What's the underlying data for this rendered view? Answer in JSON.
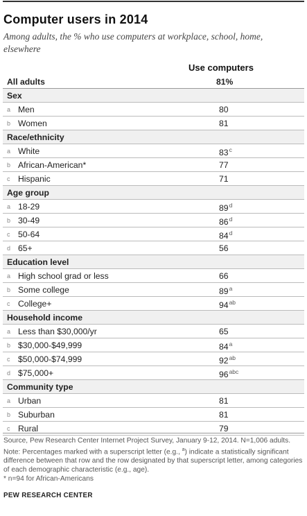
{
  "title": "Computer users in 2014",
  "subtitle": "Among adults, the % who use computers at workplace, school, home, elsewhere",
  "column_header": "Use computers",
  "chart_data": {
    "type": "table",
    "columns": [
      "",
      "Use computers"
    ],
    "rows": [
      {
        "kind": "all",
        "label": "All adults",
        "value": "81%"
      },
      {
        "kind": "section",
        "label": "Sex"
      },
      {
        "kind": "row",
        "letter": "a",
        "label": "Men",
        "value": "80",
        "sup": ""
      },
      {
        "kind": "row",
        "letter": "b",
        "label": "Women",
        "value": "81",
        "sup": ""
      },
      {
        "kind": "section",
        "label": "Race/ethnicity"
      },
      {
        "kind": "row",
        "letter": "a",
        "label": "White",
        "value": "83",
        "sup": "c"
      },
      {
        "kind": "row",
        "letter": "b",
        "label": "African-American*",
        "value": "77",
        "sup": ""
      },
      {
        "kind": "row",
        "letter": "c",
        "label": "Hispanic",
        "value": "71",
        "sup": ""
      },
      {
        "kind": "section",
        "label": "Age group"
      },
      {
        "kind": "row",
        "letter": "a",
        "label": "18-29",
        "value": "89",
        "sup": "d"
      },
      {
        "kind": "row",
        "letter": "b",
        "label": "30-49",
        "value": "86",
        "sup": "d"
      },
      {
        "kind": "row",
        "letter": "c",
        "label": "50-64",
        "value": "84",
        "sup": "d"
      },
      {
        "kind": "row",
        "letter": "d",
        "label": "65+",
        "value": "56",
        "sup": ""
      },
      {
        "kind": "section",
        "label": "Education level"
      },
      {
        "kind": "row",
        "letter": "a",
        "label": "High school grad or less",
        "value": "66",
        "sup": ""
      },
      {
        "kind": "row",
        "letter": "b",
        "label": "Some college",
        "value": "89",
        "sup": "a"
      },
      {
        "kind": "row",
        "letter": "c",
        "label": "College+",
        "value": "94",
        "sup": "ab"
      },
      {
        "kind": "section",
        "label": "Household income"
      },
      {
        "kind": "row",
        "letter": "a",
        "label": "Less than $30,000/yr",
        "value": "65",
        "sup": ""
      },
      {
        "kind": "row",
        "letter": "b",
        "label": "$30,000-$49,999",
        "value": "84",
        "sup": "a"
      },
      {
        "kind": "row",
        "letter": "c",
        "label": "$50,000-$74,999",
        "value": "92",
        "sup": "ab"
      },
      {
        "kind": "row",
        "letter": "d",
        "label": "$75,000+",
        "value": "96",
        "sup": "abc"
      },
      {
        "kind": "section",
        "label": "Community type"
      },
      {
        "kind": "row",
        "letter": "a",
        "label": "Urban",
        "value": "81",
        "sup": ""
      },
      {
        "kind": "row",
        "letter": "b",
        "label": "Suburban",
        "value": "81",
        "sup": ""
      },
      {
        "kind": "row",
        "letter": "c",
        "label": "Rural",
        "value": "79",
        "sup": ""
      }
    ]
  },
  "footnotes": {
    "source": "Source, Pew Research Center Internet Project Survey, January 9-12, 2014. N=1,006 adults.",
    "note_before": "Note: Percentages marked with a superscript letter (e.g., ",
    "note_sup": "a",
    "note_after": ") indicate a statistically significant difference between that row and the row designated by that superscript letter, among categories of each demographic characteristic (e.g., age).",
    "asterisk": "* n=94 for African-Americans"
  },
  "organization": "PEW RESEARCH CENTER"
}
